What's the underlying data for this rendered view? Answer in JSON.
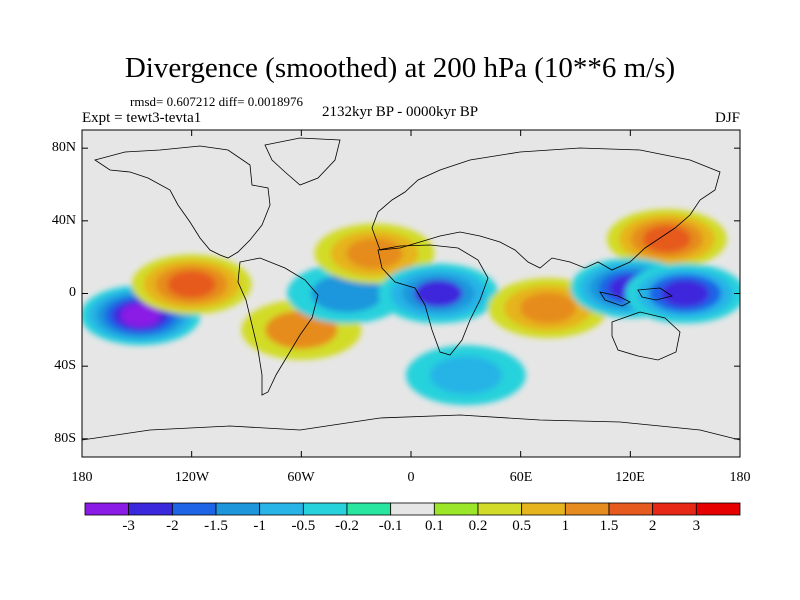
{
  "title": "Divergence (smoothed) at 200 hPa (10**6 m/s)",
  "stats": "rmsd= 0.607212 diff= 0.0018976",
  "experiment": "Expt = tewt3-tevta1",
  "period": "2132kyr BP - 0000kyr BP",
  "season": "DJF",
  "lat_ticks": [
    "80N",
    "40N",
    "0",
    "40S",
    "80S"
  ],
  "lon_ticks": [
    "180",
    "120W",
    "60W",
    "0",
    "60E",
    "120E",
    "180"
  ],
  "colorbar": {
    "labels": [
      "-3",
      "-2",
      "-1.5",
      "-1",
      "-0.5",
      "-0.2",
      "-0.1",
      "0.1",
      "0.2",
      "0.5",
      "1",
      "1.5",
      "2",
      "3"
    ],
    "colors": [
      "#8a1ae6",
      "#3c28dc",
      "#1e64e6",
      "#1e96dc",
      "#28b4e6",
      "#28d2dc",
      "#28e6a0",
      "#e6e6e6",
      "#9be628",
      "#d2dc28",
      "#e6b41e",
      "#e68c1e",
      "#e65a1e",
      "#e62814",
      "#e60000"
    ]
  },
  "chart_data": {
    "type": "heatmap",
    "title": "Divergence (smoothed) at 200 hPa (10**6 m/s)",
    "variable": "Divergence (smoothed) at 200 hPa",
    "units": "10**6 m/s",
    "projection": "cylindrical equidistant",
    "xlim": [
      -180,
      180
    ],
    "ylim": [
      -90,
      90
    ],
    "levels": [
      -3,
      -2,
      -1.5,
      -1,
      -0.5,
      -0.2,
      -0.1,
      0.1,
      0.2,
      0.5,
      1,
      1.5,
      2,
      3
    ],
    "features": [
      {
        "name": "central Pacific convergence",
        "lon": -148,
        "lat": -12,
        "value": -3.0
      },
      {
        "name": "east Pacific divergence",
        "lon": -120,
        "lat": 5,
        "value": 2.0
      },
      {
        "name": "South America divergence",
        "lon": -60,
        "lat": -20,
        "value": 1.2
      },
      {
        "name": "tropical Atlantic convergence",
        "lon": -35,
        "lat": 0,
        "value": -1.0
      },
      {
        "name": "North Atlantic divergence",
        "lon": -20,
        "lat": 22,
        "value": 1.3
      },
      {
        "name": "Africa convergence",
        "lon": 15,
        "lat": 0,
        "value": -2.0
      },
      {
        "name": "Indian Ocean divergence",
        "lon": 75,
        "lat": -8,
        "value": 1.3
      },
      {
        "name": "East Asia divergence",
        "lon": 140,
        "lat": 30,
        "value": 2.0
      },
      {
        "name": "Maritime Continent convergence",
        "lon": 120,
        "lat": 3,
        "value": -2.5
      },
      {
        "name": "west Pacific convergence",
        "lon": 150,
        "lat": 0,
        "value": -2.2
      },
      {
        "name": "southern midlatitude band",
        "lon": 30,
        "lat": -45,
        "value": -0.5
      }
    ]
  }
}
